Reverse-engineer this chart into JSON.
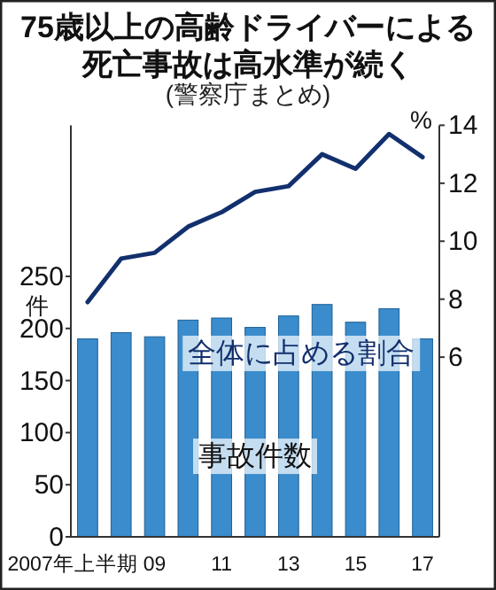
{
  "chart_data": {
    "type": "bar",
    "title": "75歳以上の高齢ドライバーによる死亡事故は高水準が続く",
    "subtitle": "(警察庁まとめ)",
    "ylabel": "件",
    "categories": [
      "2007年上半期",
      null,
      "09",
      null,
      "11",
      null,
      "13",
      null,
      "15",
      null,
      "17"
    ],
    "ylim": [
      0,
      395
    ],
    "yticks": [
      0,
      50,
      100,
      150,
      200,
      250
    ],
    "y2lim": [
      -0.2,
      14
    ],
    "annotations": [
      "%"
    ],
    "y2ticks": [
      6,
      8,
      10,
      12,
      14
    ],
    "grid": false,
    "legend": false,
    "series": [
      {
        "name": "事故件数",
        "color": "#3a8ccc",
        "values": [
          190,
          196,
          192,
          208,
          210,
          201,
          212,
          223,
          206,
          219,
          190
        ]
      },
      {
        "name": "全体に占める割合",
        "type": "line",
        "axis": "y2",
        "color": "#12306e",
        "values": [
          7.9,
          9.4,
          9.6,
          10.5,
          11.0,
          11.7,
          11.9,
          13.0,
          12.5,
          13.7,
          12.9
        ]
      }
    ]
  }
}
